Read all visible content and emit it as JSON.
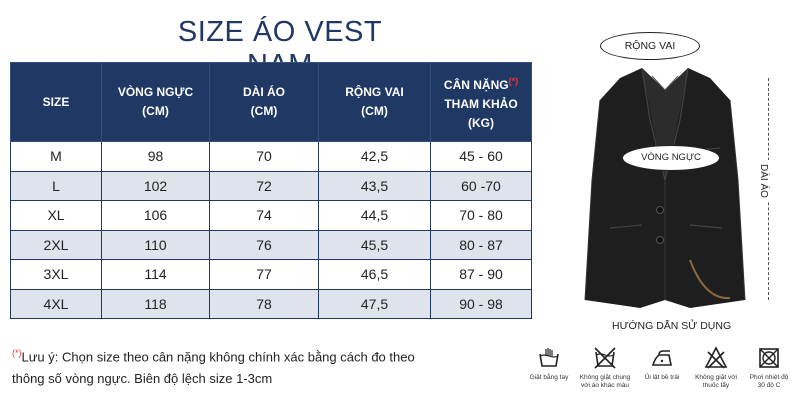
{
  "title": "SIZE ÁO VEST NAM",
  "table": {
    "headers": {
      "size": "SIZE",
      "chest_1": "VÒNG NGỰC",
      "chest_2": "(CM)",
      "length_1": "DÀI ÁO",
      "length_2": "(CM)",
      "shoulder_1": "RỘNG VAI",
      "shoulder_2": "(CM)",
      "weight_1": "CÂN NẶNG",
      "weight_star": "(*)",
      "weight_2": "THAM KHẢO",
      "weight_3": "(KG)"
    },
    "rows": [
      [
        "M",
        "98",
        "70",
        "42,5",
        "45 - 60"
      ],
      [
        "L",
        "102",
        "72",
        "43,5",
        "60 -70"
      ],
      [
        "XL",
        "106",
        "74",
        "44,5",
        "70 - 80"
      ],
      [
        "2XL",
        "110",
        "76",
        "45,5",
        "80 - 87"
      ],
      [
        "3XL",
        "114",
        "77",
        "46,5",
        "87 - 90"
      ],
      [
        "4XL",
        "118",
        "78",
        "47,5",
        "90 - 98"
      ]
    ]
  },
  "note": {
    "star": "(*)",
    "line1": "Lưu ý: Chọn size theo cân nặng không chính xác bằng cách đo theo",
    "line2": "thông số vòng ngực. Biên độ lệch size 1-3cm"
  },
  "diagram": {
    "shoulder_label": "RỘNG VAI",
    "chest_label": "VÒNG NGỰC",
    "length_label": "DÀI ÁO",
    "jacket_color": "#1e1e1e"
  },
  "care": {
    "title": "HƯỚNG DẪN SỬ DỤNG",
    "items": [
      {
        "icon": "hand-wash-icon",
        "line1": "Giặt bằng tay",
        "line2": ""
      },
      {
        "icon": "do-not-wash-together-icon",
        "line1": "Không giặt chung",
        "line2": "với áo khác màu"
      },
      {
        "icon": "iron-inside-out-icon",
        "line1": "Ủi lật bề trái",
        "line2": ""
      },
      {
        "icon": "no-bleach-icon",
        "line1": "Không giặt với",
        "line2": "thuốc tẩy"
      },
      {
        "icon": "shade-dry-icon",
        "line1": "Phơi nhiệt độ",
        "line2": "30 độ C"
      }
    ]
  }
}
